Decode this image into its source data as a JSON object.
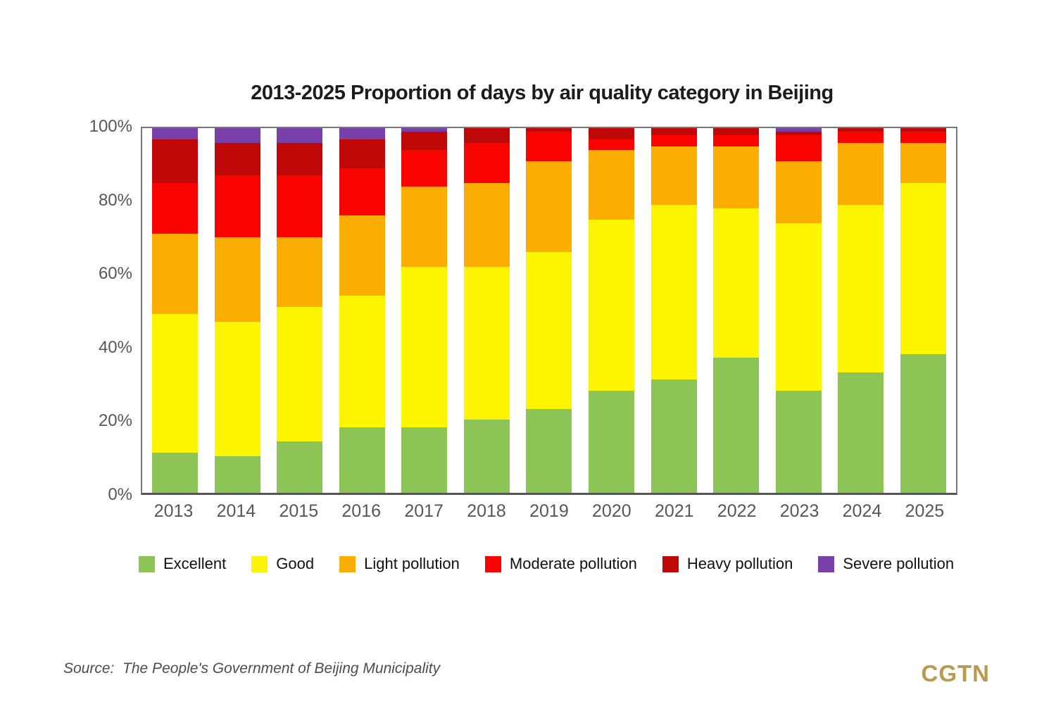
{
  "header": {
    "title": "2013-2025 Proportion of days by air quality category in Beijing"
  },
  "footer": {
    "source": "Source:  The People's Government of Beijing Municipality",
    "logo": "CGTN",
    "logo_color": "#b89b50"
  },
  "chart_data": {
    "type": "bar",
    "stacked": true,
    "title": "2013-2025 Proportion of days by air quality category in Beijing",
    "xlabel": "",
    "ylabel": "",
    "ylim": [
      0,
      100
    ],
    "grid": false,
    "legend_position": "bottom",
    "unit": "percent of days",
    "categories": [
      "2013",
      "2014",
      "2015",
      "2016",
      "2017",
      "2018",
      "2019",
      "2020",
      "2021",
      "2022",
      "2023",
      "2024",
      "2025"
    ],
    "yticks": [
      "0%",
      "20%",
      "40%",
      "60%",
      "80%",
      "100%"
    ],
    "series": [
      {
        "name": "Excellent",
        "color": "#8cc556",
        "values": [
          11,
          10,
          14,
          18,
          18,
          20,
          23,
          28,
          31,
          37,
          28,
          33,
          38
        ]
      },
      {
        "name": "Good",
        "color": "#fdf500",
        "values": [
          38,
          37,
          37,
          36,
          44,
          42,
          43,
          47,
          48,
          41,
          46,
          46,
          47
        ]
      },
      {
        "name": "Light pollution",
        "color": "#fbae00",
        "values": [
          22,
          23,
          19,
          22,
          22,
          23,
          25,
          19,
          16,
          17,
          17,
          17,
          11
        ]
      },
      {
        "name": "Moderate pollution",
        "color": "#fa0400",
        "values": [
          14,
          17,
          17,
          13,
          10,
          11,
          8,
          3,
          3,
          3,
          7,
          3,
          3
        ]
      },
      {
        "name": "Heavy pollution",
        "color": "#c00808",
        "values": [
          12,
          9,
          9,
          8,
          5,
          4,
          1,
          3,
          2,
          2,
          1,
          1,
          1
        ]
      },
      {
        "name": "Severe pollution",
        "color": "#7840a8",
        "values": [
          3,
          4,
          4,
          3,
          1,
          0,
          0,
          0,
          0,
          0,
          1,
          0,
          0
        ]
      }
    ]
  }
}
